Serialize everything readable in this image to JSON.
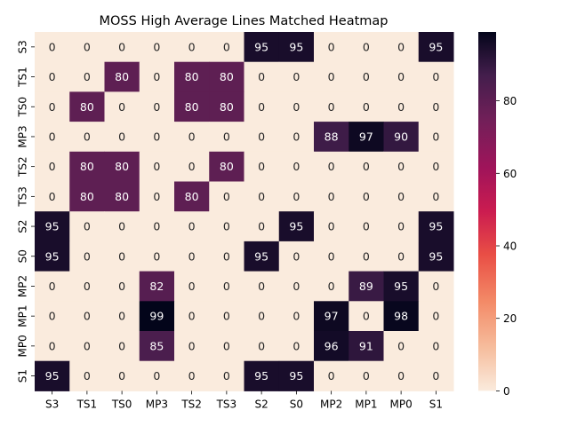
{
  "chart_data": {
    "type": "heatmap",
    "title": "MOSS High Average Lines Matched Heatmap",
    "xlabel": "",
    "ylabel": "",
    "x_labels": [
      "S3",
      "TS1",
      "TS0",
      "MP3",
      "TS2",
      "TS3",
      "S2",
      "S0",
      "MP2",
      "MP1",
      "MP0",
      "S1"
    ],
    "y_labels": [
      "S3",
      "TS1",
      "TS0",
      "MP3",
      "TS2",
      "TS3",
      "S2",
      "S0",
      "MP2",
      "MP1",
      "MP0",
      "S1"
    ],
    "values": [
      [
        0,
        0,
        0,
        0,
        0,
        0,
        95,
        95,
        0,
        0,
        0,
        95
      ],
      [
        0,
        0,
        80,
        0,
        80,
        80,
        0,
        0,
        0,
        0,
        0,
        0
      ],
      [
        0,
        80,
        0,
        0,
        80,
        80,
        0,
        0,
        0,
        0,
        0,
        0
      ],
      [
        0,
        0,
        0,
        0,
        0,
        0,
        0,
        0,
        88,
        97,
        90,
        0
      ],
      [
        0,
        80,
        80,
        0,
        0,
        80,
        0,
        0,
        0,
        0,
        0,
        0
      ],
      [
        0,
        80,
        80,
        0,
        80,
        0,
        0,
        0,
        0,
        0,
        0,
        0
      ],
      [
        95,
        0,
        0,
        0,
        0,
        0,
        0,
        95,
        0,
        0,
        0,
        95
      ],
      [
        95,
        0,
        0,
        0,
        0,
        0,
        95,
        0,
        0,
        0,
        0,
        95
      ],
      [
        0,
        0,
        0,
        82,
        0,
        0,
        0,
        0,
        0,
        89,
        95,
        0
      ],
      [
        0,
        0,
        0,
        99,
        0,
        0,
        0,
        0,
        97,
        0,
        98,
        0
      ],
      [
        0,
        0,
        0,
        85,
        0,
        0,
        0,
        0,
        96,
        91,
        0,
        0
      ],
      [
        95,
        0,
        0,
        0,
        0,
        0,
        95,
        95,
        0,
        0,
        0,
        0
      ]
    ],
    "value_range": [
      0,
      99
    ],
    "colormap": "rocket_r",
    "colorbar_ticks": [
      0,
      20,
      40,
      60,
      80
    ],
    "grid": false
  }
}
